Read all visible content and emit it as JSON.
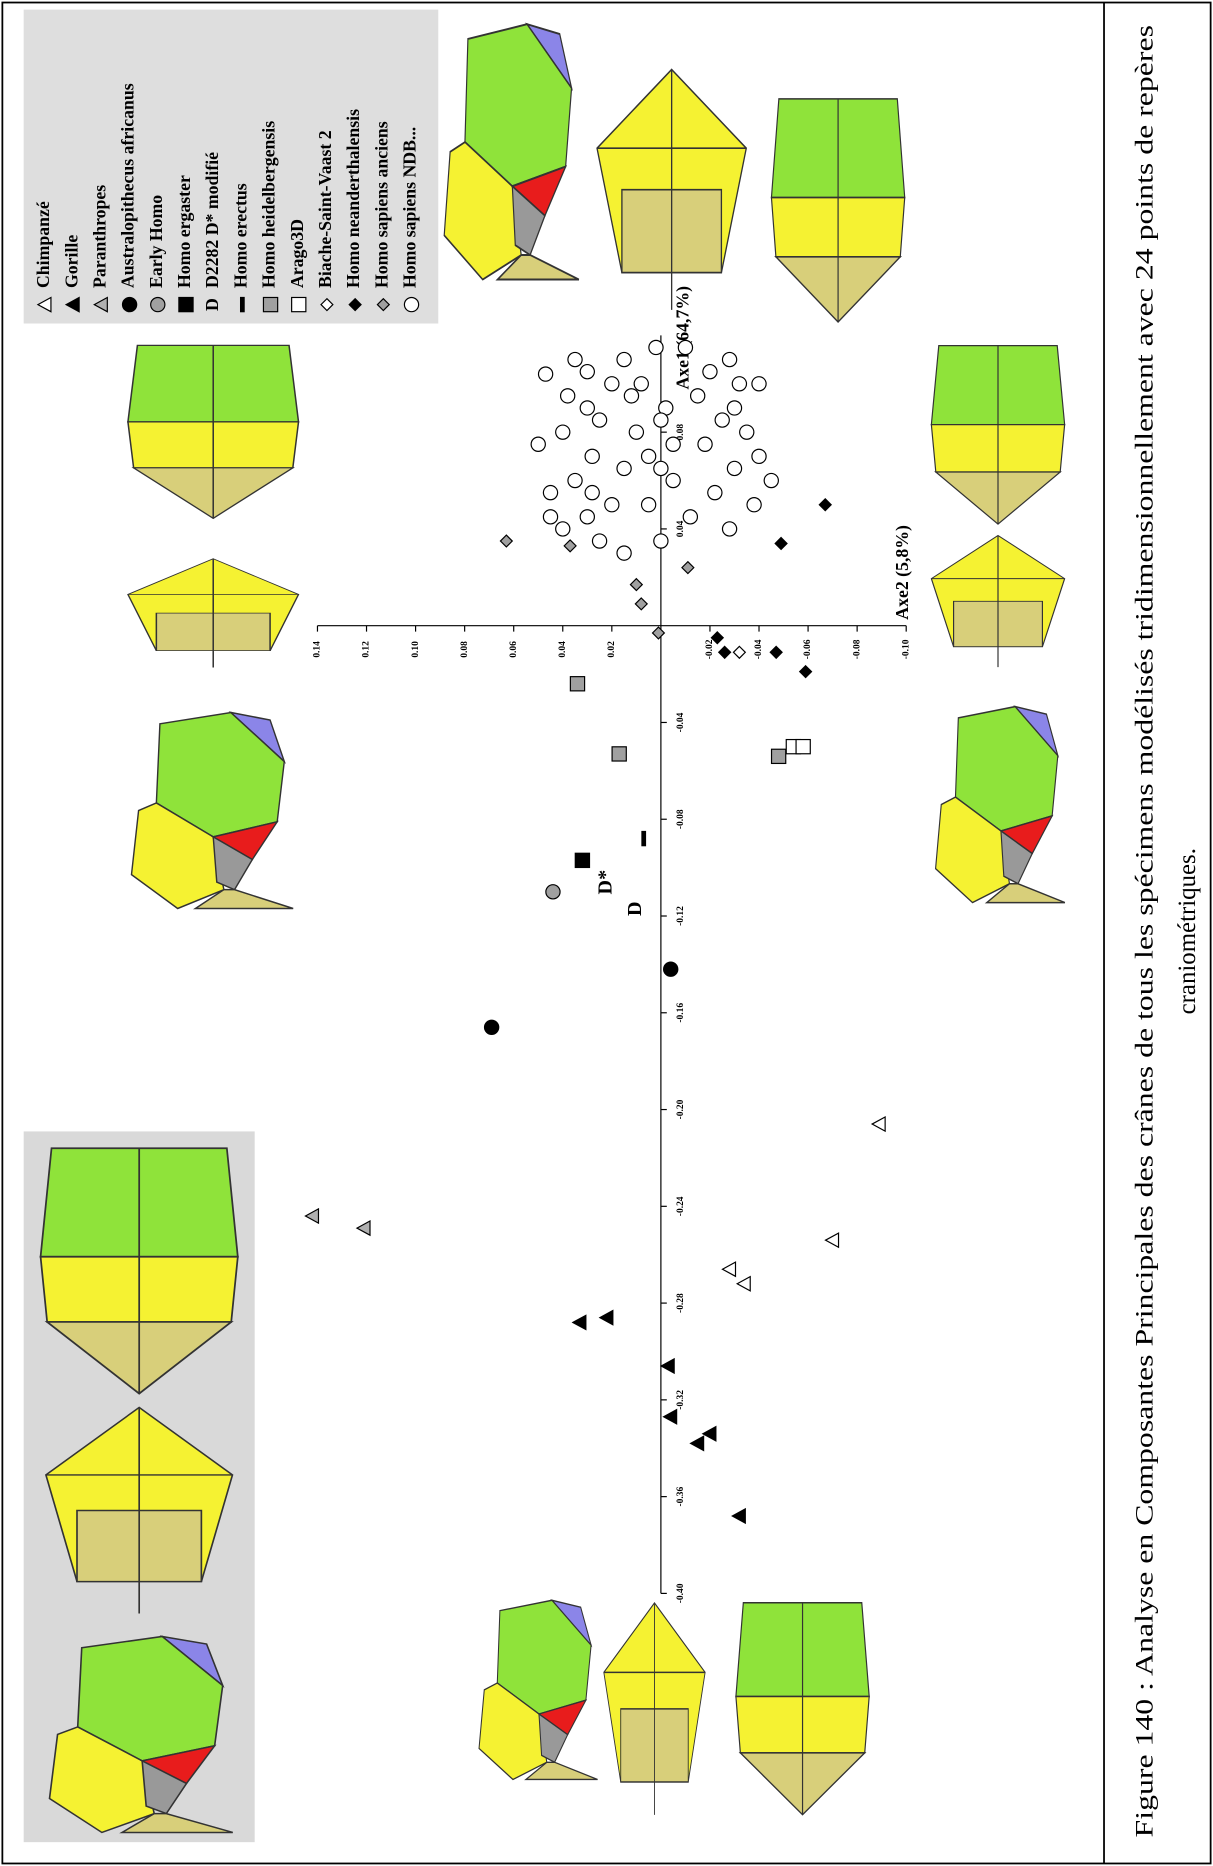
{
  "chart_data": {
    "type": "scatter",
    "x_label": "Axe1 (64,7%)",
    "y_label": "Axe2 (5,8%)",
    "caption": [
      "Figure 140 : Analyse en Composantes Principales des crânes de tous les spécimens modélisés tridimensionnellement avec 24 points de repères",
      "craniométriques."
    ],
    "xlim": [
      -0.4,
      0.12
    ],
    "xticks": [
      {
        "value": -0.4,
        "label": "-0.40"
      },
      -0.36,
      -0.32,
      -0.28,
      -0.24,
      {
        "value": -0.2,
        "label": "-0.20"
      },
      -0.16,
      -0.12,
      -0.08,
      -0.04,
      0.04,
      0.08
    ],
    "ylim": [
      -0.1,
      0.14
    ],
    "yticks": [
      0.14,
      0.12,
      {
        "value": 0.1,
        "label": "0.10"
      },
      0.08,
      0.06,
      0.04,
      0.02,
      -0.02,
      -0.04,
      -0.06,
      -0.08,
      {
        "value": -0.1,
        "label": "-0.10"
      }
    ],
    "series": [
      {
        "name": "Chimpanzé",
        "marker": "triangle",
        "color": "#ffffff",
        "x": [
          -0.206,
          -0.254,
          -0.266,
          -0.272
        ],
        "values": [
          -0.089,
          -0.07,
          -0.028,
          -0.034
        ]
      },
      {
        "name": "Gorille",
        "marker": "triangle",
        "color": "#000000",
        "x": [
          -0.288,
          -0.286,
          -0.306,
          -0.327,
          -0.338,
          -0.334,
          -0.368
        ],
        "values": [
          0.033,
          0.022,
          -0.003,
          -0.004,
          -0.015,
          -0.02,
          -0.032
        ]
      },
      {
        "name": "Paranthropes",
        "marker": "triangle",
        "color": "#b0b0b0",
        "x": [
          -0.244,
          -0.249
        ],
        "values": [
          0.142,
          0.121
        ]
      },
      {
        "name": "Australopithecus africanus",
        "marker": "circle",
        "color": "#000000",
        "x": [
          -0.166,
          -0.142
        ],
        "values": [
          0.069,
          -0.004
        ]
      },
      {
        "name": "Early Homo",
        "marker": "circle",
        "color": "#a0a0a0",
        "x": [
          -0.11
        ],
        "values": [
          0.044
        ]
      },
      {
        "name": "Homo ergaster",
        "marker": "square",
        "color": "#000000",
        "x": [
          -0.097
        ],
        "values": [
          0.032
        ]
      },
      {
        "name": "D2282 D* modifié",
        "marker": "text",
        "legend_symbol": "D",
        "color": "#000000",
        "point_labels": [
          "D*",
          "D"
        ],
        "x": [
          -0.106,
          -0.117
        ],
        "values": [
          0.022,
          0.01
        ]
      },
      {
        "name": "Homo erectus",
        "marker": "dash",
        "color": "#000000",
        "x": [
          -0.088
        ],
        "values": [
          0.007
        ]
      },
      {
        "name": "Homo heidelbergensis",
        "marker": "square",
        "color": "#a0a0a0",
        "x": [
          -0.024,
          -0.053,
          -0.054
        ],
        "values": [
          0.034,
          0.017,
          -0.048
        ]
      },
      {
        "name": "Arago3D",
        "marker": "square",
        "color": "#ffffff",
        "x": [
          -0.05,
          -0.05
        ],
        "values": [
          -0.054,
          -0.058
        ]
      },
      {
        "name": "Biache-Saint-Vaast 2",
        "marker": "diamond",
        "color": "#ffffff",
        "x": [
          -0.011
        ],
        "values": [
          -0.032
        ]
      },
      {
        "name": "Homo neanderthalensis",
        "marker": "diamond",
        "color": "#000000",
        "x": [
          -0.005,
          -0.011,
          -0.011,
          -0.019,
          0.05,
          0.034
        ],
        "values": [
          -0.023,
          -0.026,
          -0.047,
          -0.059,
          -0.067,
          -0.049
        ]
      },
      {
        "name": "Homo sapiens anciens",
        "marker": "diamond",
        "color": "#a0a0a0",
        "x": [
          0.035,
          0.033,
          0.017,
          0.009,
          -0.003,
          0.024
        ],
        "values": [
          0.063,
          0.037,
          0.01,
          0.008,
          0.001,
          -0.011
        ]
      },
      {
        "name": "Homo sapiens NDB...",
        "marker": "circle",
        "color": "#ffffff",
        "x": [
          0.104,
          0.095,
          0.09,
          0.1,
          0.085,
          0.08,
          0.075,
          0.07,
          0.065,
          0.06,
          0.055,
          0.05,
          0.045,
          0.04,
          0.035,
          0.03,
          0.05,
          0.06,
          0.07,
          0.08,
          0.09,
          0.1,
          0.11,
          0.115,
          0.105,
          0.095,
          0.085,
          0.075,
          0.065,
          0.055,
          0.045,
          0.04,
          0.05,
          0.06,
          0.07,
          0.08,
          0.09,
          0.1,
          0.11,
          0.115,
          0.1,
          0.105,
          0.11,
          0.035,
          0.045,
          0.065,
          0.075,
          0.085,
          0.095,
          0.055
        ],
        "values": [
          0.047,
          0.038,
          0.03,
          0.02,
          0.025,
          0.04,
          0.05,
          0.028,
          0.015,
          0.035,
          0.045,
          0.02,
          0.03,
          0.04,
          0.025,
          0.015,
          0.005,
          -0.005,
          0.005,
          0.01,
          -0.002,
          0.008,
          0.015,
          -0.01,
          -0.02,
          -0.015,
          -0.025,
          -0.018,
          -0.03,
          -0.022,
          -0.012,
          -0.028,
          -0.038,
          -0.045,
          -0.04,
          -0.035,
          -0.03,
          -0.04,
          -0.028,
          0.002,
          -0.032,
          0.03,
          0.035,
          0.0,
          0.045,
          0.0,
          -0.005,
          0.0,
          0.012,
          0.028
        ]
      }
    ]
  }
}
